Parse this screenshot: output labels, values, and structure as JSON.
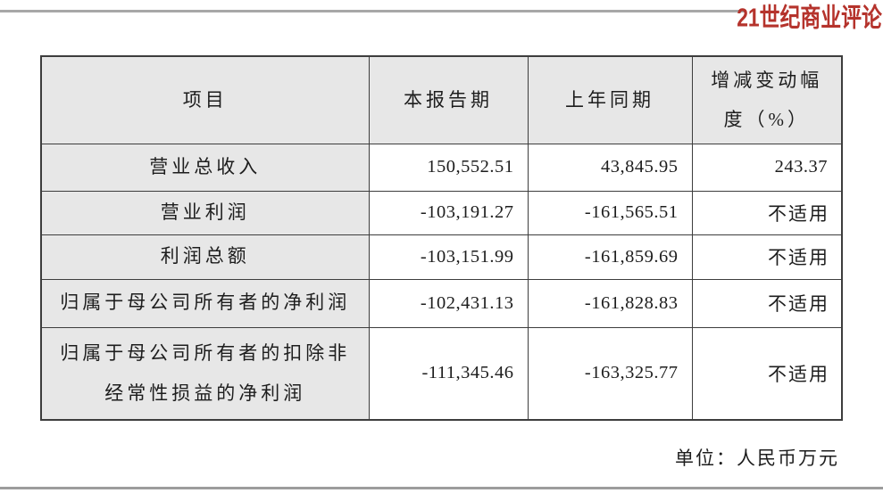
{
  "page": {
    "logo_text": "21世纪商业评论",
    "unit_note": "单位：人民币万元"
  },
  "colors": {
    "logo_red": "#b5332c",
    "header_bg": "#e7e7e7",
    "border": "#3d3d3d",
    "rule_gray": "#a7a7a7"
  },
  "table": {
    "headers": [
      "项目",
      "本报告期",
      "上年同期",
      "增减变动幅度（%）"
    ],
    "rows": [
      {
        "label": "营业总收入",
        "current": "150,552.51",
        "prior": "43,845.95",
        "change": "243.37"
      },
      {
        "label": "营业利润",
        "current": "-103,191.27",
        "prior": "-161,565.51",
        "change": "不适用"
      },
      {
        "label": "利润总额",
        "current": "-103,151.99",
        "prior": "-161,859.69",
        "change": "不适用"
      },
      {
        "label": "归属于母公司所有者的净利润",
        "current": "-102,431.13",
        "prior": "-161,828.83",
        "change": "不适用"
      },
      {
        "label": "归属于母公司所有者的扣除非经常性损益的净利润",
        "current": "-111,345.46",
        "prior": "-163,325.77",
        "change": "不适用"
      }
    ]
  }
}
